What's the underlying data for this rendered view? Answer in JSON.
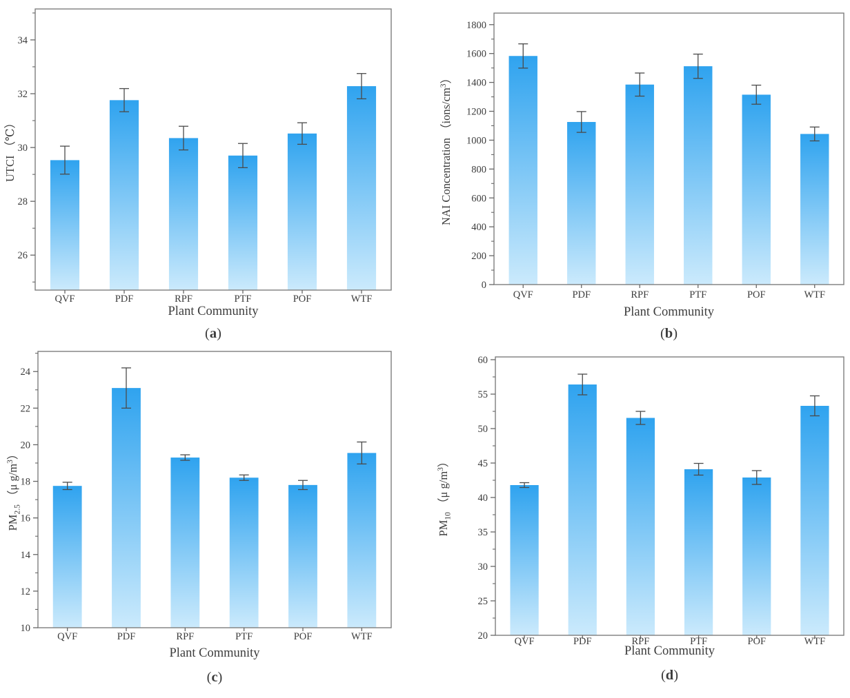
{
  "figure": {
    "x_axis_title": "Plant Community",
    "categories": [
      "QVF",
      "PDF",
      "RPF",
      "PTF",
      "POF",
      "WTF"
    ],
    "bar_width_ratio": 0.49,
    "colors": {
      "bar_gradient_top": "#2FA3EF",
      "bar_gradient_bottom": "#CBEAFC",
      "axis": "#7d7d7d",
      "tick": "#666666",
      "text": "#3c3c3c",
      "error_bar": "#4a4a4a",
      "background": "#FFFFFF"
    }
  },
  "chart_data": [
    {
      "id": "a",
      "type": "bar",
      "panel_label": "(a)",
      "xlabel": "Plant Community",
      "ylabel": "UTCI （℃）",
      "ylabel_parts": [
        {
          "text": "UTCI （℃）"
        }
      ],
      "categories": [
        "QVF",
        "PDF",
        "RPF",
        "PTF",
        "POF",
        "WTF"
      ],
      "values": [
        29.53,
        31.76,
        30.35,
        29.7,
        30.52,
        32.28
      ],
      "errors": [
        0.52,
        0.43,
        0.44,
        0.45,
        0.4,
        0.47
      ],
      "ylim": [
        24.7,
        35.15
      ],
      "yticks": [
        26,
        28,
        30,
        32,
        34
      ],
      "minor_tick_step": 1,
      "grid": false,
      "legend": null
    },
    {
      "id": "b",
      "type": "bar",
      "panel_label": "(b)",
      "xlabel": "Plant Community",
      "ylabel": "NAI Concentration （ions/cm³）",
      "ylabel_parts": [
        {
          "text": "NAI Concentration （ions/cm"
        },
        {
          "text": "3",
          "script": "sup"
        },
        {
          "text": "）"
        }
      ],
      "categories": [
        "QVF",
        "PDF",
        "RPF",
        "PTF",
        "POF",
        "WTF"
      ],
      "values": [
        1583,
        1126,
        1385,
        1512,
        1315,
        1043
      ],
      "errors": [
        84,
        72,
        80,
        84,
        66,
        48
      ],
      "ylim": [
        0,
        1880
      ],
      "yticks": [
        0,
        200,
        400,
        600,
        800,
        1000,
        1200,
        1400,
        1600,
        1800
      ],
      "minor_tick_step": 100,
      "grid": false,
      "legend": null
    },
    {
      "id": "c",
      "type": "bar",
      "panel_label": "(c)",
      "xlabel": "Plant Community",
      "ylabel": "PM2.5 （μ g/m³）",
      "ylabel_parts": [
        {
          "text": "PM"
        },
        {
          "text": "2.5",
          "script": "sub"
        },
        {
          "text": " （μ g/m"
        },
        {
          "text": "3",
          "script": "sup"
        },
        {
          "text": "）"
        }
      ],
      "categories": [
        "QVF",
        "PDF",
        "RPF",
        "PTF",
        "POF",
        "WTF"
      ],
      "values": [
        17.75,
        23.1,
        19.3,
        18.2,
        17.8,
        19.55
      ],
      "errors": [
        0.2,
        1.1,
        0.15,
        0.15,
        0.25,
        0.6
      ],
      "ylim": [
        10,
        25.1
      ],
      "yticks": [
        10,
        12,
        14,
        16,
        18,
        20,
        22,
        24
      ],
      "minor_tick_step": 1,
      "grid": false,
      "legend": null
    },
    {
      "id": "d",
      "type": "bar",
      "panel_label": "(d)",
      "xlabel": "Plant Community",
      "ylabel": "PM10 （μ g/m³）",
      "ylabel_parts": [
        {
          "text": "PM"
        },
        {
          "text": "10",
          "script": "sub"
        },
        {
          "text": " （μ g/m"
        },
        {
          "text": "3",
          "script": "sup"
        },
        {
          "text": "）"
        }
      ],
      "categories": [
        "QVF",
        "PDF",
        "RPF",
        "PTF",
        "POF",
        "WTF"
      ],
      "values": [
        41.8,
        56.4,
        51.55,
        44.1,
        42.9,
        53.3
      ],
      "errors": [
        0.35,
        1.5,
        0.95,
        0.85,
        1.0,
        1.45
      ],
      "ylim": [
        20,
        60.4
      ],
      "yticks": [
        20,
        25,
        30,
        35,
        40,
        45,
        50,
        55,
        60
      ],
      "minor_tick_step": 2.5,
      "grid": false,
      "legend": null
    }
  ]
}
